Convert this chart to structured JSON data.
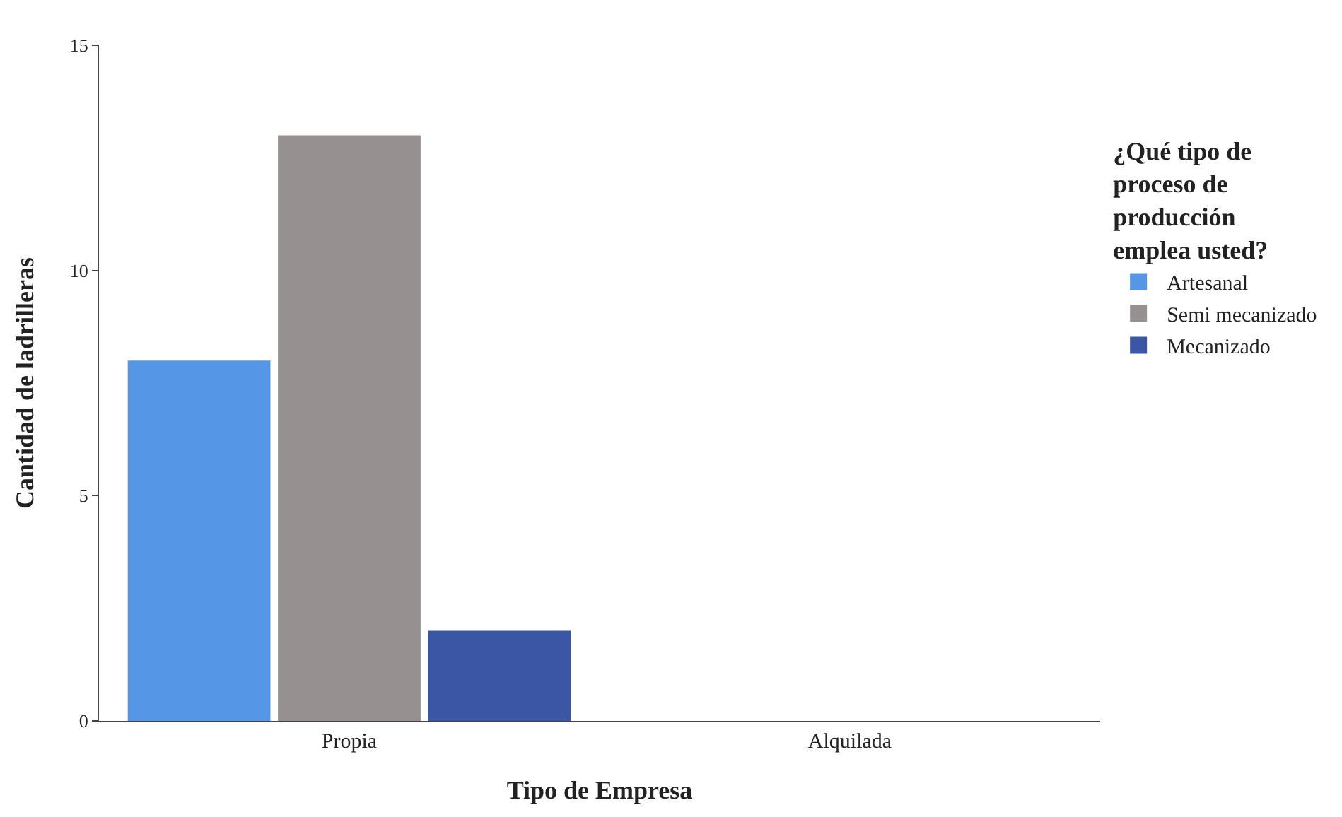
{
  "chart_data": {
    "type": "bar",
    "xlabel": "Tipo de Empresa",
    "ylabel": "Cantidad de ladrilleras",
    "legend_title": "¿Qué tipo de proceso de producción emplea usted?",
    "categories": [
      "Propia",
      "Alquilada"
    ],
    "series": [
      {
        "name": "Artesanal",
        "color": "#5596e6",
        "values": [
          8,
          0
        ]
      },
      {
        "name": "Semi mecanizado",
        "color": "#969190",
        "values": [
          13,
          0
        ]
      },
      {
        "name": "Mecanizado",
        "color": "#3b56a4",
        "values": [
          2,
          0
        ]
      }
    ],
    "ylim": [
      0,
      15
    ],
    "yticks": [
      0,
      5,
      10,
      15
    ],
    "legend": "right"
  }
}
